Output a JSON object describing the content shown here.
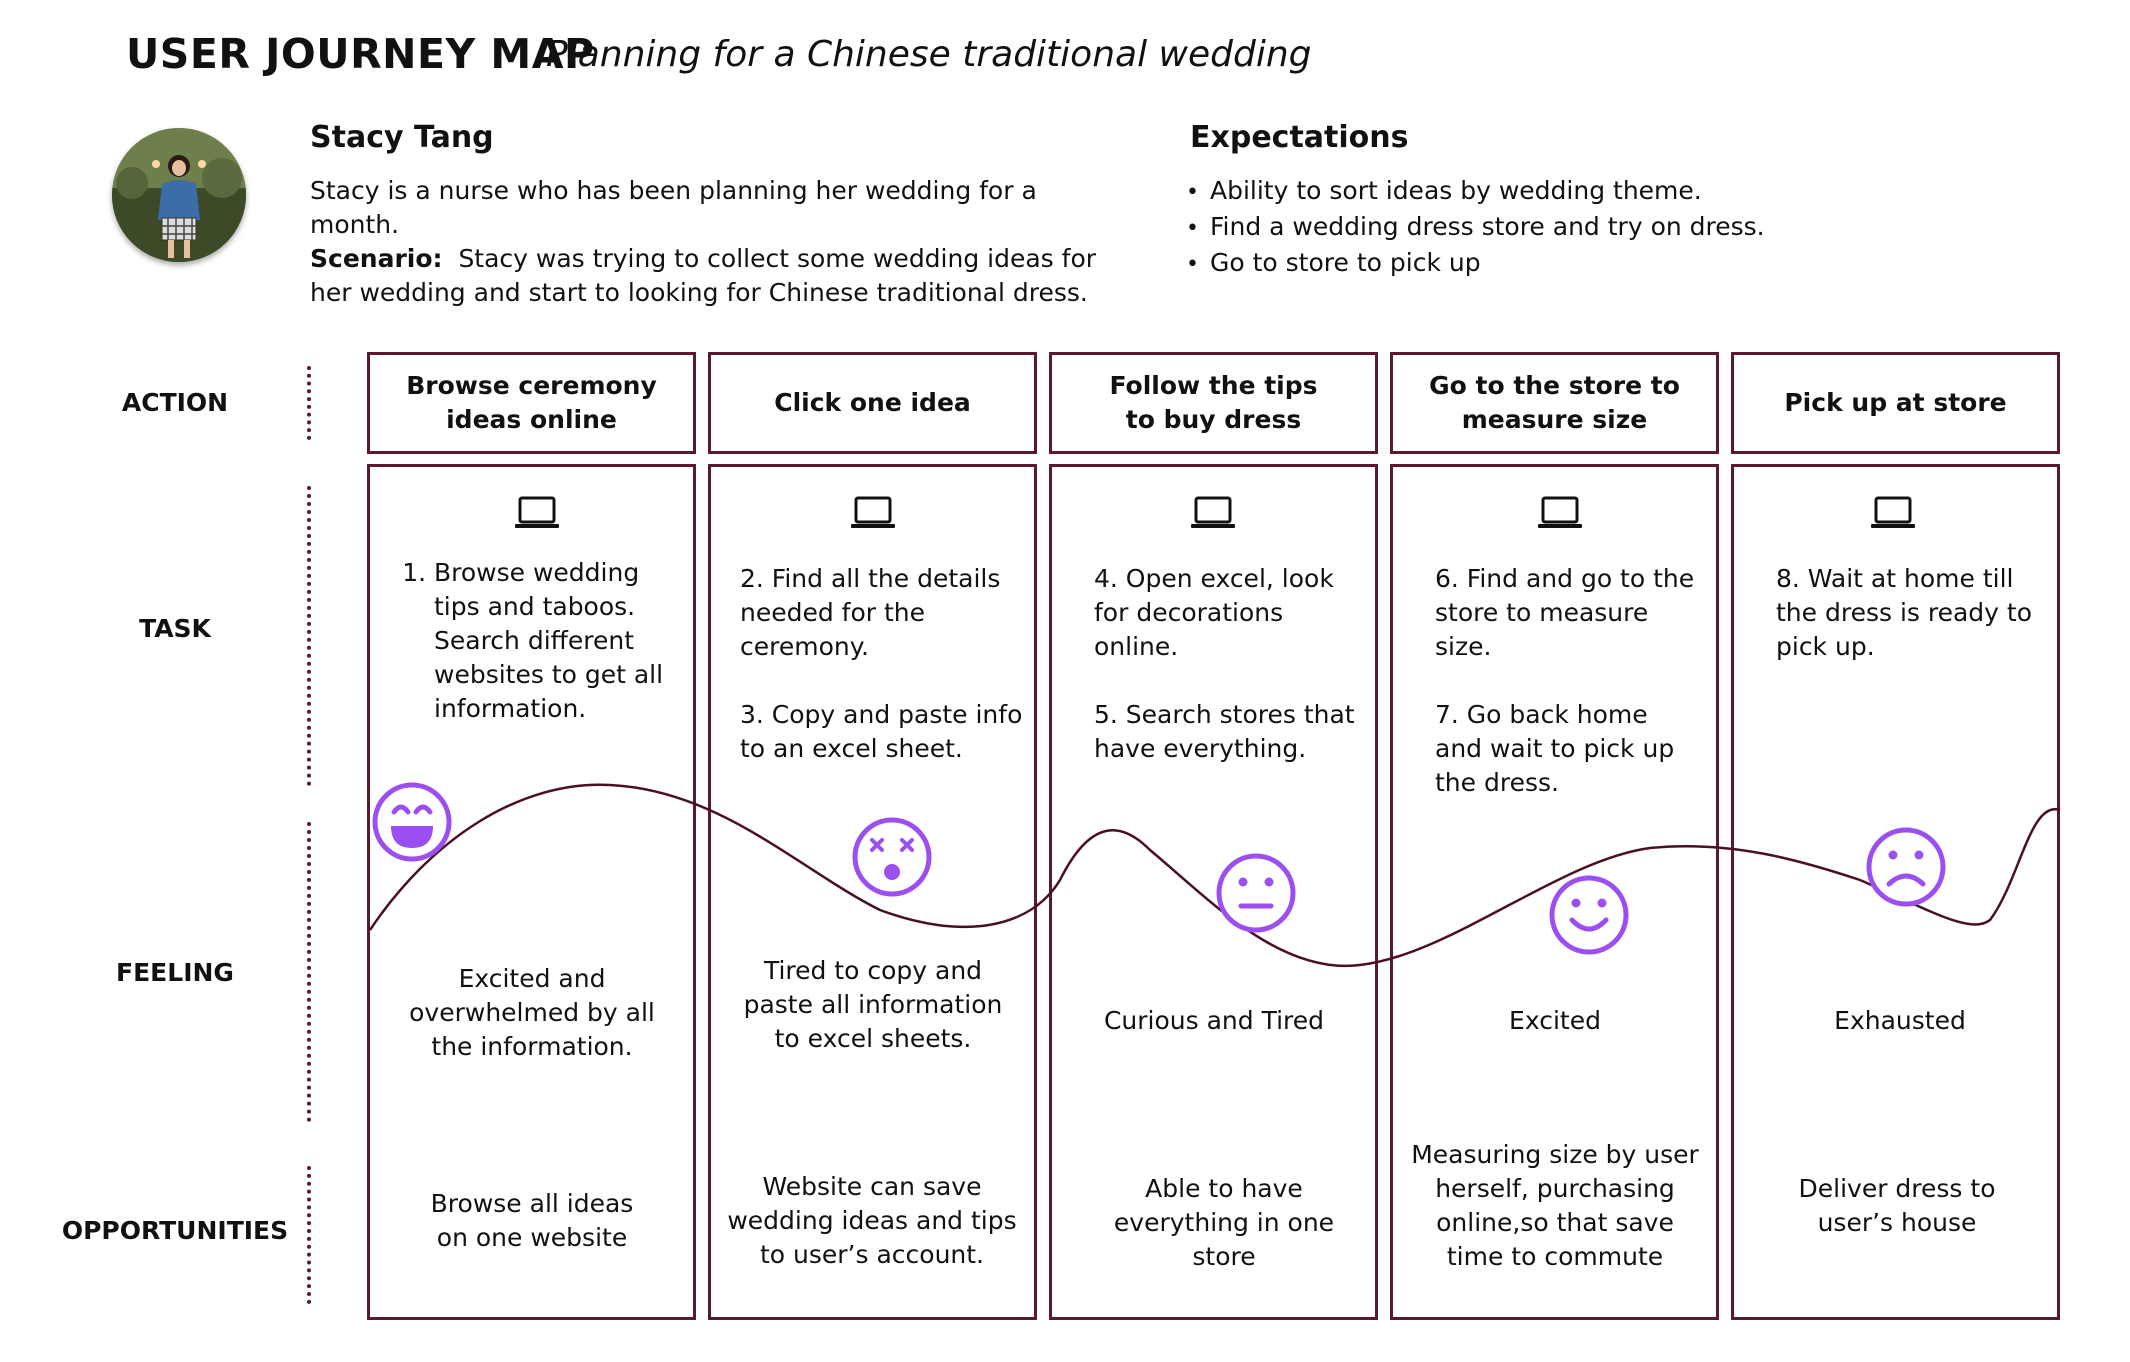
{
  "header": {
    "title": "USER JOURNEY MAP",
    "subtitle": "Planning for a Chinese traditional wedding"
  },
  "persona": {
    "name": "Stacy Tang",
    "description": "Stacy is a nurse who has been planning her wedding for a month.",
    "scenario_label": "Scenario:",
    "scenario_line1": "Stacy was trying to collect some wedding ideas for",
    "scenario_line2": "her wedding and start to looking for Chinese traditional dress."
  },
  "expectations": {
    "title": "Expectations",
    "items": [
      "Ability to sort ideas by wedding theme.",
      "Find a wedding dress store and try on dress.",
      "Go to store to pick up"
    ]
  },
  "rows": {
    "action": "ACTION",
    "task": "TASK",
    "feeling": "FEELING",
    "opportunities": "OPPORTUNITIES"
  },
  "columns": [
    {
      "action_l1": "Browse ceremony",
      "action_l2": "ideas online",
      "task_a": "Browse wedding tips and taboos. Search different websites to get all information.",
      "task_b": "",
      "feeling": "Excited and overwhelmed by all the information.",
      "emotion_icon": "laughing-face-icon",
      "opportunity": "Browse all ideas on one website"
    },
    {
      "action_l1": "Click one idea",
      "action_l2": "",
      "task_a": "2. Find all the details needed for the ceremony.",
      "task_b": "3.  Copy and paste info to an excel sheet.",
      "feeling": "Tired to copy and paste all information to excel sheets.",
      "emotion_icon": "dizzy-face-icon",
      "opportunity": "Website can save wedding ideas and tips to user’s account."
    },
    {
      "action_l1": "Follow the tips",
      "action_l2": "to buy dress",
      "task_a": "4. Open excel, look for decorations online.",
      "task_b": "5. Search stores that have everything.",
      "feeling": "Curious and Tired",
      "emotion_icon": "neutral-face-icon",
      "opportunity": "Able to have everything in one store"
    },
    {
      "action_l1": "Go to the store to",
      "action_l2": "measure size",
      "task_a": "6. Find and go to the store to measure size.",
      "task_b": "7. Go back home and wait to pick up the dress.",
      "feeling": "Excited",
      "emotion_icon": "smiling-face-icon",
      "opportunity": "Measuring size by user herself, purchasing online,so that save time to commute"
    },
    {
      "action_l1": "Pick up at store",
      "action_l2": "",
      "task_a": "8. Wait at home till the dress is ready to pick up.",
      "task_b": "",
      "feeling": "Exhausted",
      "emotion_icon": "sad-face-icon",
      "opportunity": "Deliver dress to user’s house"
    }
  ],
  "colors": {
    "frame": "#5a1a2e",
    "emotion": "#9b4ff0",
    "curve": "#4a0f22"
  }
}
